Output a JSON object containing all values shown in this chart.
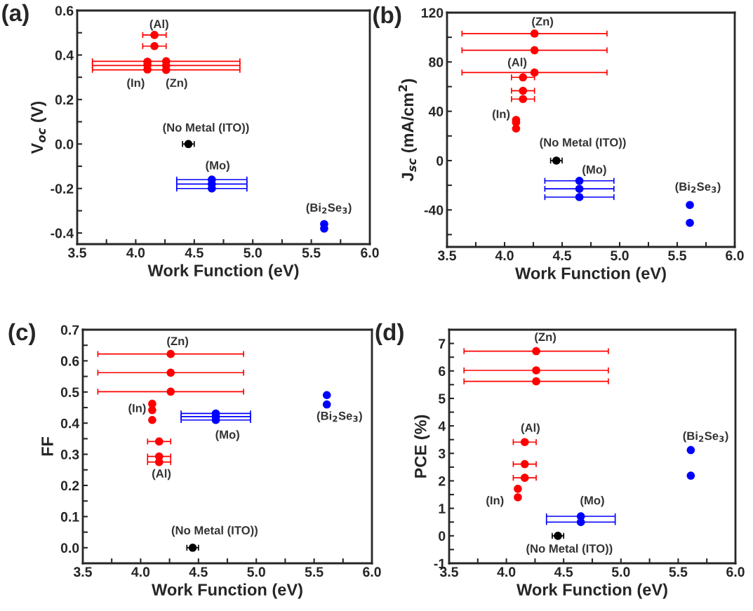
{
  "chart_data": [
    {
      "type": "scatter",
      "title": "(a)",
      "xlabel": "Work Function (eV)",
      "ylabel": "V$_{oc}$ (V)",
      "xlim": [
        3.5,
        6.0
      ],
      "xticks": [
        3.5,
        {
          "value": 3.75,
          "label": null
        },
        {
          "value": 4,
          "label": "4.0"
        },
        {
          "value": 4.25,
          "label": null
        },
        4.5,
        {
          "value": 4.75,
          "label": null
        },
        {
          "value": 5,
          "label": "5.0"
        },
        {
          "value": 5.25,
          "label": null
        },
        5.5,
        {
          "value": 5.75,
          "label": null
        },
        {
          "value": 6,
          "label": "6.0"
        }
      ],
      "ylim": [
        -0.45,
        0.6
      ],
      "yticks": [
        -0.4,
        {
          "value": -0.3,
          "label": null
        },
        -0.2,
        {
          "value": -0.1,
          "label": null
        },
        {
          "value": 0,
          "label": "0.0"
        },
        {
          "value": 0.1,
          "label": null
        },
        0.2,
        {
          "value": 0.3,
          "label": null
        },
        0.4,
        {
          "value": 0.5,
          "label": null
        },
        0.6
      ],
      "marker": "circle",
      "grid": false,
      "legend": false,
      "series": [
        {
          "color": "#ff0000",
          "x": [
            4.16,
            4.16,
            4.1,
            4.1,
            4.1,
            4.26,
            4.26,
            4.26
          ],
          "values": [
            0.49,
            0.44,
            0.37,
            0.355,
            0.335,
            0.372,
            0.353,
            0.333
          ],
          "xerrors": [
            0.1,
            0.1,
            null,
            null,
            null,
            0.63,
            0.63,
            0.63
          ]
        },
        {
          "color": "#000000",
          "x": [
            4.45
          ],
          "values": [
            0.0
          ],
          "xerrors": [
            0.05
          ]
        },
        {
          "color": "#0000ff",
          "x": [
            4.65,
            4.65,
            4.65,
            5.61,
            5.61
          ],
          "values": [
            -0.16,
            -0.18,
            -0.2,
            -0.36,
            -0.38
          ],
          "xerrors": [
            0.3,
            0.3,
            0.3,
            null,
            null
          ]
        }
      ],
      "annotations": [
        "(Al)",
        "(In)",
        "(Zn)",
        "(No Metal (ITO))",
        "(Mo)",
        "(Bi$_{2}$Se$_{3}$)"
      ]
    },
    {
      "type": "scatter",
      "title": "(b)",
      "xlabel": "Work Function (eV)",
      "ylabel": "J$_{sc}$ (mA/cm$^{2}$)",
      "xlim": [
        3.5,
        6.0
      ],
      "xticks": [
        3.5,
        {
          "value": 3.75,
          "label": null
        },
        {
          "value": 4,
          "label": "4.0"
        },
        {
          "value": 4.25,
          "label": null
        },
        4.5,
        {
          "value": 4.75,
          "label": null
        },
        {
          "value": 5,
          "label": "5.0"
        },
        {
          "value": 5.25,
          "label": null
        },
        5.5,
        {
          "value": 5.75,
          "label": null
        },
        {
          "value": 6,
          "label": "6.0"
        }
      ],
      "ylim": [
        -70,
        120
      ],
      "yticks": [
        {
          "value": -60,
          "label": null
        },
        -40,
        {
          "value": -20,
          "label": null
        },
        0,
        {
          "value": 20,
          "label": null
        },
        40,
        {
          "value": 60,
          "label": null
        },
        80,
        {
          "value": 100,
          "label": null
        },
        120
      ],
      "marker": "circle",
      "grid": false,
      "legend": false,
      "series": [
        {
          "color": "#ff0000",
          "x": [
            4.26,
            4.26,
            4.26,
            4.16,
            4.16,
            4.16,
            4.1,
            4.1,
            4.1
          ],
          "values": [
            103,
            89.5,
            71.4,
            67.5,
            56.6,
            49.9,
            33,
            31,
            26
          ],
          "xerrors": [
            0.63,
            0.63,
            0.63,
            0.1,
            0.1,
            0.1,
            null,
            null,
            null
          ]
        },
        {
          "color": "#000000",
          "x": [
            4.45
          ],
          "values": [
            0
          ],
          "xerrors": [
            0.05
          ]
        },
        {
          "color": "#0000ff",
          "x": [
            4.65,
            4.65,
            4.65,
            5.61,
            5.61
          ],
          "values": [
            -16.4,
            -22.9,
            -29.6,
            -36,
            -50.5
          ],
          "xerrors": [
            0.3,
            0.3,
            0.3,
            null,
            null
          ]
        }
      ],
      "annotations": [
        "(Zn)",
        "(Al)",
        "(In)",
        "(No Metal (ITO))",
        "(Mo)",
        "(Bi$_{2}$Se$_{3}$)"
      ]
    },
    {
      "type": "scatter",
      "title": "(c)",
      "xlabel": "Work Function (eV)",
      "ylabel": "FF",
      "xlim": [
        3.5,
        6.0
      ],
      "xticks": [
        3.5,
        {
          "value": 3.75,
          "label": null
        },
        {
          "value": 4,
          "label": "4.0"
        },
        {
          "value": 4.25,
          "label": null
        },
        4.5,
        {
          "value": 4.75,
          "label": null
        },
        {
          "value": 5,
          "label": "5.0"
        },
        {
          "value": 5.25,
          "label": null
        },
        5.5,
        {
          "value": 5.75,
          "label": null
        },
        {
          "value": 6,
          "label": "6.0"
        }
      ],
      "ylim": [
        -0.05,
        0.7
      ],
      "yticks": [
        {
          "value": 0,
          "label": "0.0"
        },
        {
          "value": 0.05,
          "label": null
        },
        0.1,
        {
          "value": 0.15,
          "label": null
        },
        0.2,
        {
          "value": 0.25,
          "label": null
        },
        0.3,
        {
          "value": 0.35,
          "label": null
        },
        0.4,
        {
          "value": 0.45,
          "label": null
        },
        0.5,
        {
          "value": 0.55,
          "label": null
        },
        0.6,
        {
          "value": 0.65,
          "label": null
        },
        0.7
      ],
      "marker": "circle",
      "grid": false,
      "legend": false,
      "series": [
        {
          "color": "#ff0000",
          "x": [
            4.26,
            4.26,
            4.26,
            4.1,
            4.1,
            4.1,
            4.16,
            4.16,
            4.16
          ],
          "values": [
            0.622,
            0.562,
            0.501,
            0.462,
            0.442,
            0.41,
            0.341,
            0.293,
            0.275
          ],
          "xerrors": [
            0.63,
            0.63,
            0.63,
            null,
            null,
            null,
            0.1,
            0.1,
            0.1
          ]
        },
        {
          "color": "#000000",
          "x": [
            4.45
          ],
          "values": [
            0.0
          ],
          "xerrors": [
            0.05
          ]
        },
        {
          "color": "#0000ff",
          "x": [
            4.65,
            4.65,
            4.65,
            5.61,
            5.61
          ],
          "values": [
            0.431,
            0.421,
            0.41,
            0.49,
            0.46
          ],
          "xerrors": [
            0.3,
            0.3,
            0.3,
            null,
            null
          ]
        }
      ],
      "annotations": [
        "(Zn)",
        "(In)",
        "(Al)",
        "(No Metal (ITO))",
        {
          "text": "(Mo)",
          "x": 4.65,
          "y": 0.41
        },
        "(Bi$_{2}$Se$_{3}$)"
      ]
    },
    {
      "type": "scatter",
      "title": "(d)",
      "xlabel": "Work Function (eV)",
      "ylabel": "PCE (%)",
      "xlim": [
        3.5,
        6.0
      ],
      "xticks": [
        3.5,
        {
          "value": 3.75,
          "label": null
        },
        {
          "value": 4,
          "label": "4.0"
        },
        {
          "value": 4.25,
          "label": null
        },
        4.5,
        {
          "value": 4.75,
          "label": null
        },
        {
          "value": 5,
          "label": "5.0"
        },
        {
          "value": 5.25,
          "label": null
        },
        5.5,
        {
          "value": 5.75,
          "label": null
        },
        {
          "value": 6,
          "label": "6.0"
        }
      ],
      "ylim": [
        -1,
        7.5
      ],
      "yticks": [
        -1,
        {
          "value": -0.5,
          "label": null
        },
        0,
        {
          "value": 0.5,
          "label": null
        },
        1,
        {
          "value": 1.5,
          "label": null
        },
        2,
        {
          "value": 2.5,
          "label": null
        },
        3,
        {
          "value": 3.5,
          "label": null
        },
        4,
        {
          "value": 4.5,
          "label": null
        },
        5,
        {
          "value": 5.5,
          "label": null
        },
        6,
        {
          "value": 6.5,
          "label": null
        },
        7
      ],
      "marker": "circle",
      "grid": false,
      "legend": false,
      "series": [
        {
          "color": "#ff0000",
          "x": [
            4.26,
            4.26,
            4.26,
            4.16,
            4.16,
            4.16,
            4.1,
            4.1
          ],
          "values": [
            6.72,
            6.02,
            5.62,
            3.41,
            2.61,
            2.11,
            1.71,
            1.4
          ],
          "xerrors": [
            0.63,
            0.63,
            0.63,
            0.1,
            0.1,
            0.1,
            null,
            null
          ]
        },
        {
          "color": "#000000",
          "x": [
            4.45
          ],
          "values": [
            0
          ],
          "xerrors": [
            0.05
          ]
        },
        {
          "color": "#0000ff",
          "x": [
            4.65,
            4.65,
            5.61,
            5.61
          ],
          "values": [
            0.71,
            0.5,
            3.12,
            2.19
          ],
          "xerrors": [
            0.3,
            0.3,
            null,
            null
          ]
        }
      ],
      "annotations": [
        "(Zn)",
        "(Al)",
        "(In)",
        "(Mo)",
        "(No Metal (ITO))",
        "(Bi$_{2}$Se$_{3}$)"
      ]
    }
  ]
}
